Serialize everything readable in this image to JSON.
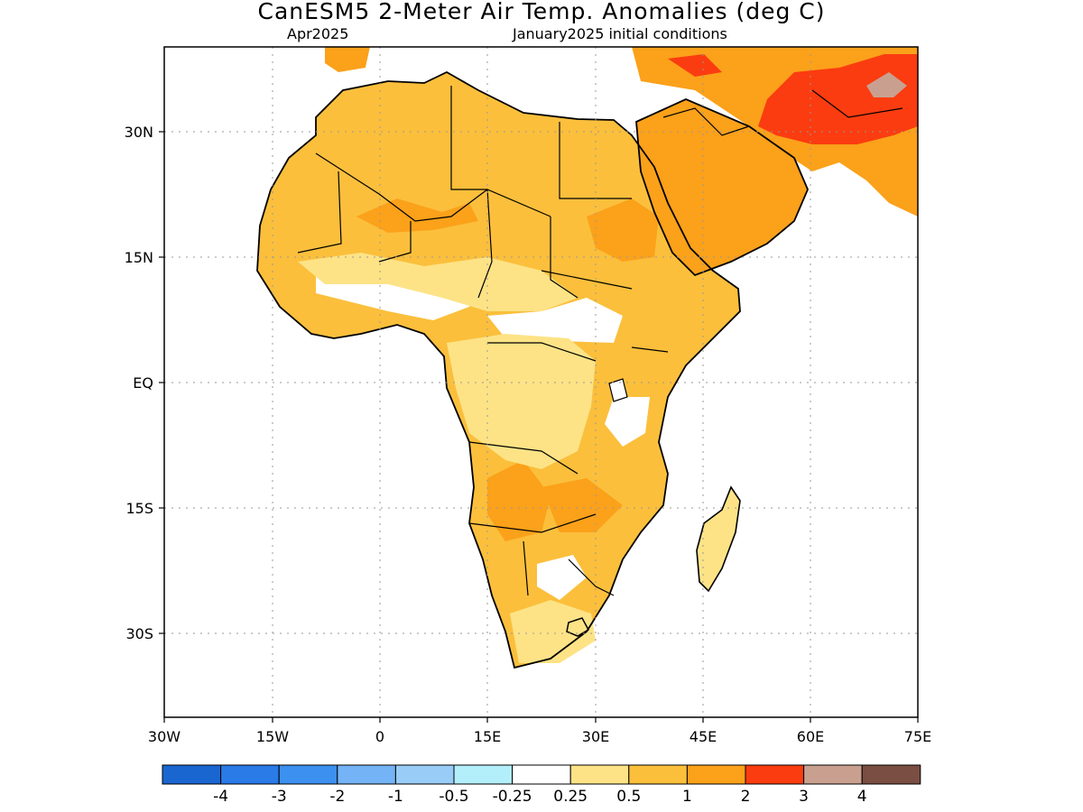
{
  "title": "CanESM5 2-Meter Air Temp. Anomalies (deg C)",
  "subtitle_left": "Apr2025",
  "subtitle_right": "January2025 initial conditions",
  "map": {
    "lon_range": [
      -30,
      75
    ],
    "lat_range": [
      -37,
      47
    ],
    "lon_ticks": [
      "30W",
      "15W",
      "0",
      "15E",
      "30E",
      "45E",
      "60E",
      "75E"
    ],
    "lat_ticks": [
      "30N",
      "15N",
      "EQ",
      "15S",
      "30S"
    ],
    "grid": "dotted"
  },
  "colorbar": {
    "colors": [
      "#1a66d0",
      "#2a7ae8",
      "#3c90ef",
      "#74b3f5",
      "#99cdf7",
      "#b3effb",
      "#ffffff",
      "#fde386",
      "#fbbf3c",
      "#fba11a",
      "#fb3c10",
      "#c9a090",
      "#7a4e42"
    ],
    "labels": [
      "-4",
      "-3",
      "-2",
      "-1",
      "-0.5",
      "-0.25",
      "0.25",
      "0.5",
      "1",
      "2",
      "3",
      "4"
    ]
  },
  "colors": {
    "anomaly_0_25_to_0_5": "#fde386",
    "anomaly_0_5_to_1": "#fbbf3c",
    "anomaly_1_to_2": "#fba11a",
    "anomaly_2_to_3": "#fb3c10",
    "anomaly_3_to_4": "#c9a090"
  }
}
